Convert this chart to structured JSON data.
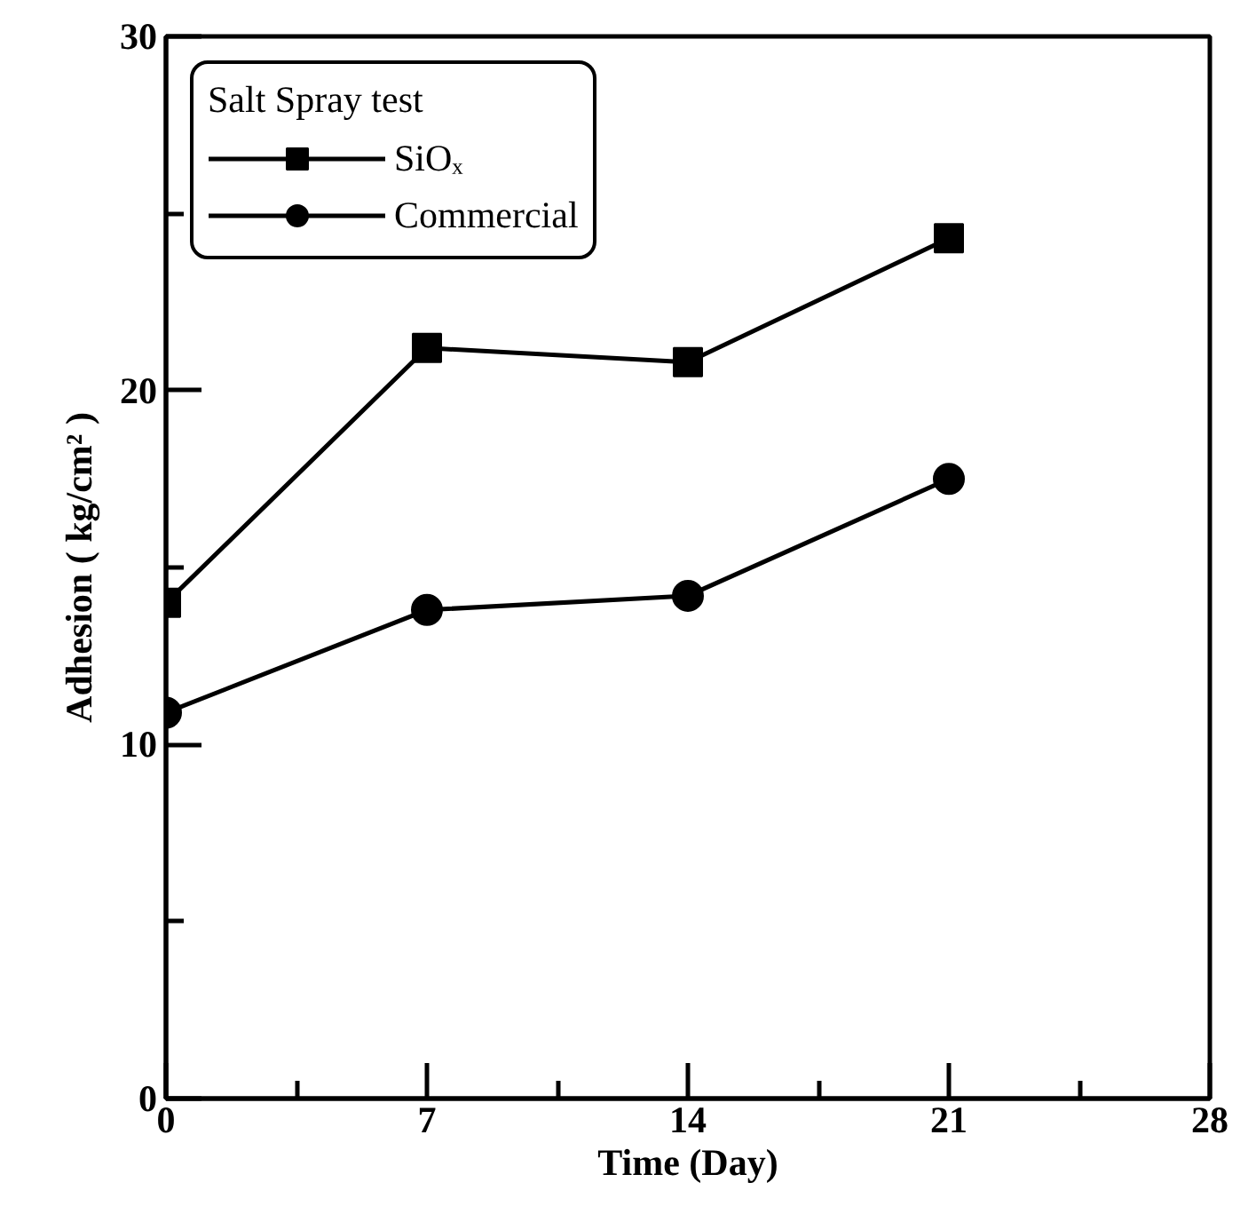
{
  "chart_data": {
    "type": "line",
    "xlabel": "Time (Day)",
    "ylabel": "Adhesion ( kg/cm² )",
    "legend_title": "Salt Spray test",
    "x": [
      0,
      7,
      14,
      21
    ],
    "series": [
      {
        "name": "SiOₓ",
        "color": "#000000",
        "marker": "square",
        "values": [
          14.0,
          21.2,
          20.8,
          24.3
        ]
      },
      {
        "name": "Commercial",
        "color": "#000000",
        "marker": "circle",
        "values": [
          10.9,
          13.8,
          14.2,
          17.5
        ]
      }
    ],
    "xlim": [
      0,
      28
    ],
    "ylim": [
      0,
      30
    ],
    "xticks": [
      0,
      {
        "value": 3.5,
        "label": null
      },
      7,
      {
        "value": 10.5,
        "label": null
      },
      14,
      {
        "value": 17.5,
        "label": null
      },
      21,
      {
        "value": 24.5,
        "label": null
      },
      28
    ],
    "yticks": [
      0,
      {
        "value": 5,
        "label": null
      },
      10,
      {
        "value": 15,
        "label": null
      },
      20,
      {
        "value": 25,
        "label": null
      },
      30
    ],
    "grid": false,
    "legend": "top left",
    "line_style": "solid"
  }
}
